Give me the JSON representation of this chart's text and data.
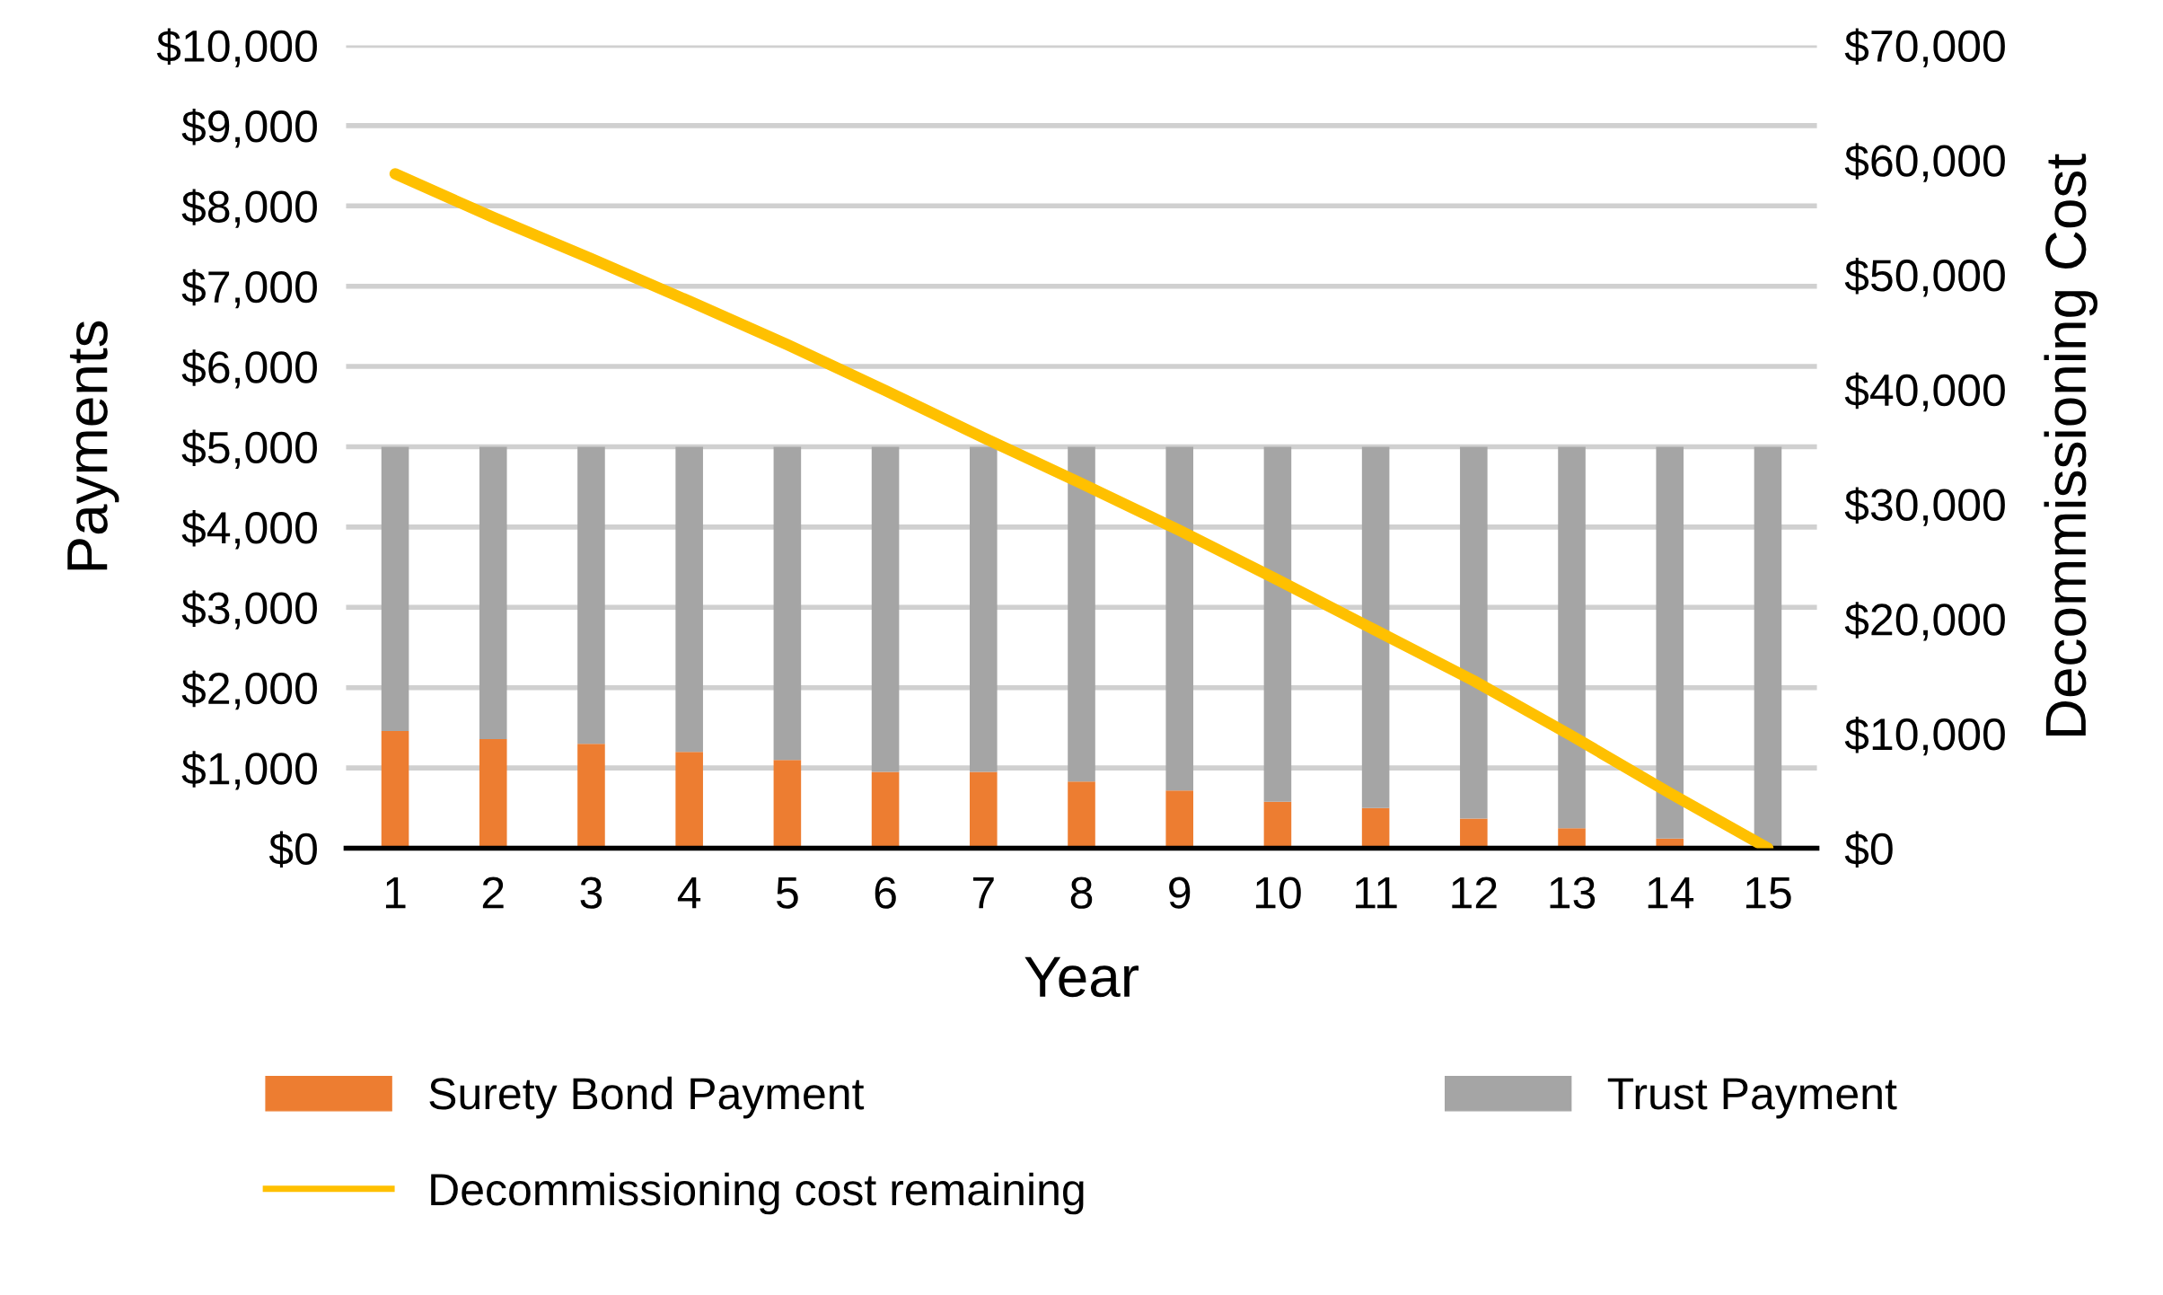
{
  "chart_data": {
    "type": "bar",
    "stacked": true,
    "xlabel": "Year",
    "ylabel": "Payments",
    "y2label": "Decommissioning Cost",
    "categories": [
      "1",
      "2",
      "3",
      "4",
      "5",
      "6",
      "7",
      "8",
      "9",
      "10",
      "11",
      "12",
      "13",
      "14",
      "15"
    ],
    "series": [
      {
        "name": "Surety Bond Payment",
        "color": "#ed7d31",
        "values": [
          1460,
          1360,
          1300,
          1200,
          1100,
          950,
          950,
          830,
          720,
          580,
          500,
          370,
          250,
          120,
          0
        ]
      },
      {
        "name": "Trust Payment",
        "color": "#a5a5a5",
        "values": [
          3540,
          3640,
          3700,
          3800,
          3900,
          4050,
          4050,
          4170,
          4280,
          4420,
          4500,
          4630,
          4750,
          4880,
          5000
        ]
      },
      {
        "name": "Decommissioning cost remaining",
        "type": "line",
        "axis": "y2",
        "color": "#ffc000",
        "values": [
          58800,
          55000,
          51400,
          47700,
          43900,
          39900,
          35800,
          31800,
          27700,
          23400,
          19000,
          14600,
          9800,
          4800,
          0
        ]
      }
    ],
    "ylim": [
      0,
      10000
    ],
    "yticks": [
      {
        "value": 0,
        "label": "$0"
      },
      {
        "value": 1000,
        "label": "$1,000"
      },
      {
        "value": 2000,
        "label": "$2,000"
      },
      {
        "value": 3000,
        "label": "$3,000"
      },
      {
        "value": 4000,
        "label": "$4,000"
      },
      {
        "value": 5000,
        "label": "$5,000"
      },
      {
        "value": 6000,
        "label": "$6,000"
      },
      {
        "value": 7000,
        "label": "$7,000"
      },
      {
        "value": 8000,
        "label": "$8,000"
      },
      {
        "value": 9000,
        "label": "$9,000"
      },
      {
        "value": 10000,
        "label": "$10,000"
      }
    ],
    "y2lim": [
      0,
      70000
    ],
    "y2ticks": [
      {
        "value": 0,
        "label": "$0"
      },
      {
        "value": 10000,
        "label": "$10,000"
      },
      {
        "value": 20000,
        "label": "$20,000"
      },
      {
        "value": 30000,
        "label": "$30,000"
      },
      {
        "value": 40000,
        "label": "$40,000"
      },
      {
        "value": 50000,
        "label": "$50,000"
      },
      {
        "value": 60000,
        "label": "$60,000"
      },
      {
        "value": 70000,
        "label": "$70,000"
      }
    ],
    "grid": "y",
    "legend": "bottom"
  }
}
